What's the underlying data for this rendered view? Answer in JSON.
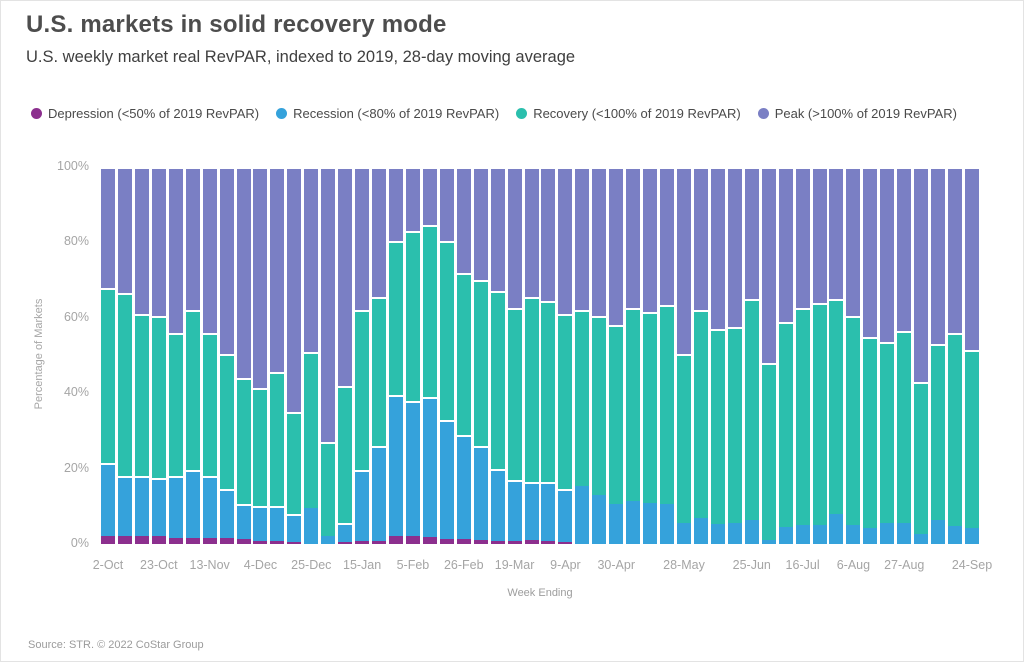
{
  "header": {
    "title": "U.S. markets in solid recovery mode",
    "subtitle": "U.S. weekly market real RevPAR, indexed to 2019, 28-day moving average"
  },
  "footer": {
    "source": "Source: STR. © 2022 CoStar Group"
  },
  "chart_data": {
    "type": "bar",
    "subtype": "stacked-100-percent",
    "title": "U.S. markets in solid recovery mode",
    "xlabel": "Week Ending",
    "ylabel": "Percentage of Markets",
    "ylim": [
      0,
      100
    ],
    "grid": false,
    "legend_position": "top",
    "y_ticks": [
      100,
      80,
      60,
      40,
      20,
      0
    ],
    "y_tick_suffix": "%",
    "x_ticks": [
      {
        "index": 0,
        "label": "2-Oct"
      },
      {
        "index": 3,
        "label": "23-Oct"
      },
      {
        "index": 6,
        "label": "13-Nov"
      },
      {
        "index": 9,
        "label": "4-Dec"
      },
      {
        "index": 12,
        "label": "25-Dec"
      },
      {
        "index": 15,
        "label": "15-Jan"
      },
      {
        "index": 18,
        "label": "5-Feb"
      },
      {
        "index": 21,
        "label": "26-Feb"
      },
      {
        "index": 24,
        "label": "19-Mar"
      },
      {
        "index": 27,
        "label": "9-Apr"
      },
      {
        "index": 30,
        "label": "30-Apr"
      },
      {
        "index": 34,
        "label": "28-May"
      },
      {
        "index": 38,
        "label": "25-Jun"
      },
      {
        "index": 41,
        "label": "16-Jul"
      },
      {
        "index": 44,
        "label": "6-Aug"
      },
      {
        "index": 47,
        "label": "27-Aug"
      },
      {
        "index": 51,
        "label": "24-Sep"
      }
    ],
    "categories": [
      "2-Oct",
      "9-Oct",
      "16-Oct",
      "23-Oct",
      "30-Oct",
      "6-Nov",
      "13-Nov",
      "20-Nov",
      "27-Nov",
      "4-Dec",
      "11-Dec",
      "18-Dec",
      "25-Dec",
      "1-Jan",
      "8-Jan",
      "15-Jan",
      "22-Jan",
      "29-Jan",
      "5-Feb",
      "12-Feb",
      "19-Feb",
      "26-Feb",
      "5-Mar",
      "12-Mar",
      "19-Mar",
      "26-Mar",
      "2-Apr",
      "9-Apr",
      "16-Apr",
      "23-Apr",
      "30-Apr",
      "7-May",
      "14-May",
      "21-May",
      "28-May",
      "4-Jun",
      "11-Jun",
      "18-Jun",
      "25-Jun",
      "2-Jul",
      "9-Jul",
      "16-Jul",
      "23-Jul",
      "30-Jul",
      "6-Aug",
      "13-Aug",
      "20-Aug",
      "27-Aug",
      "3-Sep",
      "10-Sep",
      "17-Sep",
      "24-Sep"
    ],
    "series": [
      {
        "name": "Depression (<50% of 2019 RevPAR)",
        "color": "#8C2F8E",
        "values": [
          2,
          2,
          2,
          2.2,
          1.5,
          1.5,
          1.5,
          1.5,
          1.2,
          0.8,
          0.8,
          0.5,
          0,
          0,
          0.6,
          0.8,
          0.8,
          2.2,
          2.1,
          1.9,
          1.2,
          1.2,
          1,
          0.8,
          0.8,
          1,
          0.8,
          0.5,
          0,
          0,
          0,
          0,
          0,
          0,
          0,
          0,
          0,
          0,
          0,
          0,
          0,
          0,
          0,
          0,
          0,
          0,
          0,
          0,
          0,
          0,
          0,
          0
        ]
      },
      {
        "name": "Recession (<80% of 2019 RevPAR)",
        "color": "#35A2DB",
        "values": [
          19.5,
          16,
          16,
          15.3,
          16.5,
          18,
          16.5,
          13,
          9.3,
          9.2,
          9.2,
          7.5,
          9.5,
          2,
          4.9,
          18.7,
          25.2,
          37.3,
          35.9,
          37.1,
          31.8,
          27.8,
          25,
          19.2,
          16.2,
          15.5,
          15.7,
          14,
          15.5,
          13,
          10.5,
          11.5,
          11,
          10.5,
          5.5,
          7,
          5.2,
          5.7,
          6.5,
          1,
          4.5,
          5,
          5,
          8,
          5,
          4.3,
          5.7,
          5.7,
          2.7,
          6.3,
          4.8,
          4.3
        ]
      },
      {
        "name": "Recovery (<100% of 2019 RevPAR)",
        "color": "#2BBFAD",
        "values": [
          46.5,
          48.5,
          43,
          43,
          38,
          42.5,
          38,
          36,
          33.5,
          31.5,
          35.5,
          27,
          41.5,
          25,
          36.5,
          42.5,
          39.5,
          41,
          45,
          45.5,
          47.5,
          43,
          44,
          47,
          45.5,
          49,
          48,
          46.5,
          46.5,
          47.5,
          47.5,
          51,
          50.5,
          53,
          45,
          55,
          51.8,
          51.8,
          58.5,
          47,
          54.5,
          57.5,
          59,
          57,
          55.5,
          50.7,
          47.8,
          50.8,
          40.3,
          46.7,
          51.2,
          47.2
        ]
      },
      {
        "name": "Peak (>100% of 2019 RevPAR)",
        "color": "#7A7FC4",
        "values": [
          32,
          33.5,
          39,
          39.5,
          44,
          38,
          44,
          49.5,
          56,
          58.5,
          54.5,
          65,
          49,
          73,
          58,
          38,
          34.5,
          19.5,
          17,
          15.5,
          19.5,
          28,
          30,
          33,
          37.5,
          34.5,
          35.5,
          39,
          38,
          39.5,
          42,
          37.5,
          38.5,
          36.5,
          49.5,
          38,
          43,
          42.5,
          35,
          52,
          41,
          37.5,
          36,
          35,
          39.5,
          45,
          46.5,
          43.5,
          57,
          47,
          44,
          48.5
        ]
      }
    ]
  }
}
